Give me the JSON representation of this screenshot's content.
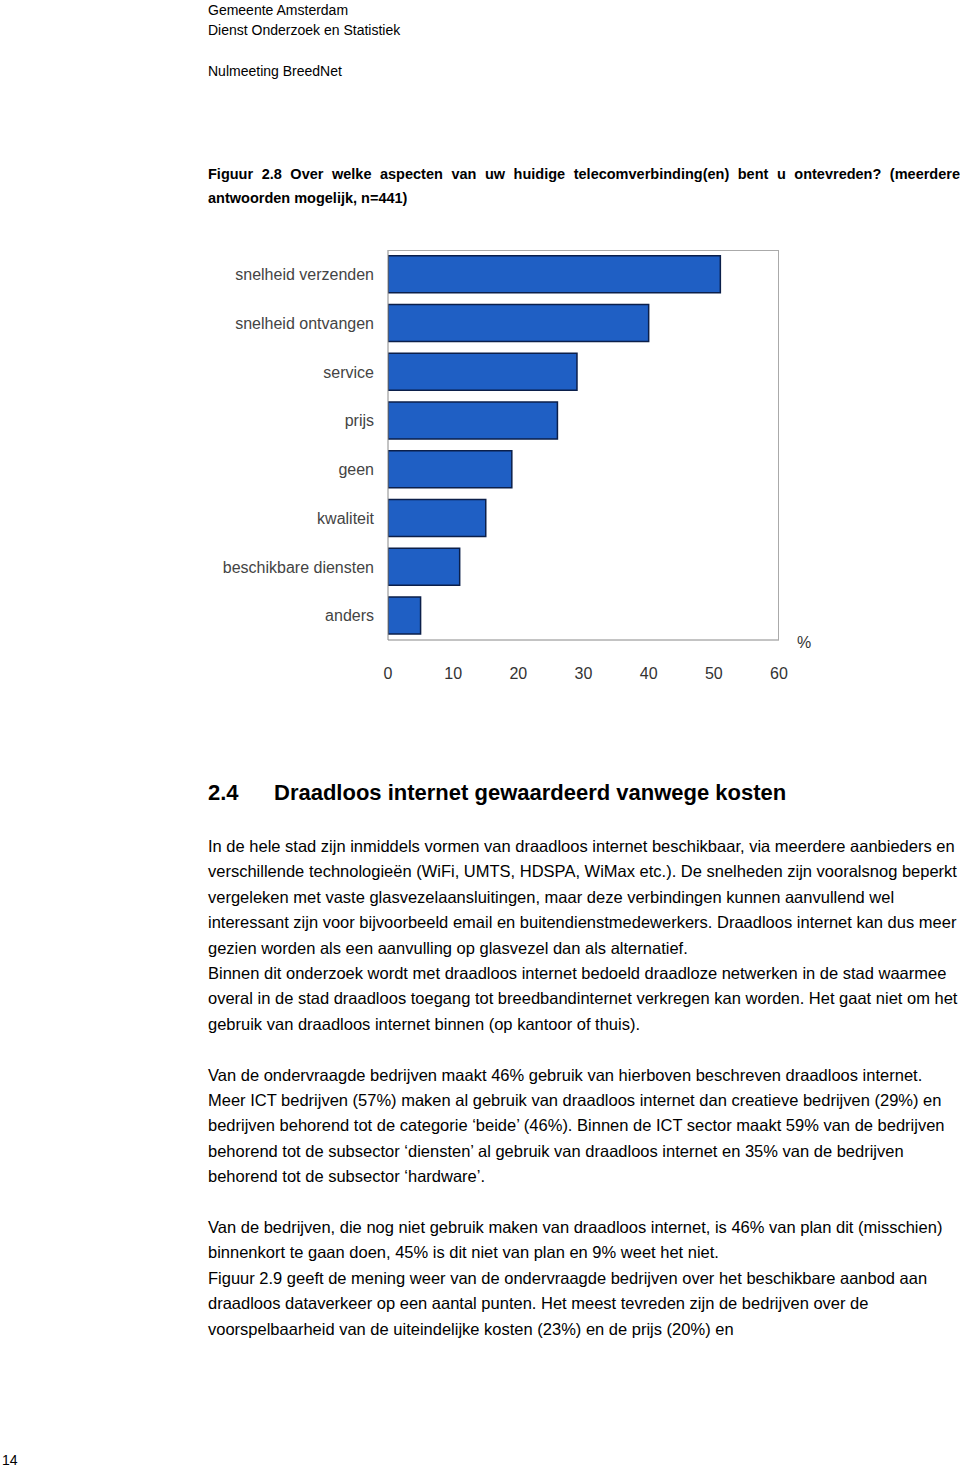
{
  "chart_data": {
    "type": "bar",
    "orientation": "horizontal",
    "title": "Figuur 2.8 Over welke aspecten van uw huidige telecomverbinding(en) bent u ontevreden? (meerdere antwoorden mogelijk, n=441)",
    "categories": [
      "snelheid verzenden",
      "snelheid ontvangen",
      "service",
      "prijs",
      "geen",
      "kwaliteit",
      "beschikbare diensten",
      "anders"
    ],
    "values": [
      51,
      40,
      29,
      26,
      19,
      15,
      11,
      5
    ],
    "color": "#1f5fc4",
    "x_label": "%",
    "xlim": [
      0,
      60
    ],
    "xticks": [
      0,
      10,
      20,
      30,
      40,
      50,
      60
    ],
    "grid": false
  },
  "document": {
    "header": [
      "Gemeente Amsterdam",
      "Dienst Onderzoek en Statistiek"
    ],
    "report": "Nulmeeting BreedNet",
    "section": {
      "number": "2.4",
      "title": "Draadloos internet gewaardeerd vanwege kosten"
    },
    "body": [
      [
        "In de hele stad zijn inmiddels vormen van draadloos internet beschikbaar, via meerdere aanbieders en verschillende technologieën (WiFi, UMTS, HDSPA, WiMax etc.). De snelheden zijn vooralsnog beperkt vergeleken met vaste glasvezelaansluitingen, maar deze verbindingen kunnen aanvullend wel interessant zijn voor bijvoorbeeld email en buitendienstmedewerkers. Draadloos internet kan dus meer gezien worden als een aanvulling op glasvezel dan als alternatief.",
        "Binnen dit onderzoek wordt met draadloos internet bedoeld draadloze netwerken in de stad waarmee overal in de stad draadloos toegang tot breedbandinternet verkregen kan worden. Het gaat niet om het gebruik van draadloos internet binnen (op kantoor of thuis)."
      ],
      [
        "Van de ondervraagde bedrijven maakt 46% gebruik van hierboven beschreven draadloos internet. Meer ICT bedrijven (57%) maken al gebruik van draadloos internet dan creatieve bedrijven (29%) en bedrijven behorend tot de categorie ‘beide’ (46%). Binnen de ICT sector maakt 59% van de bedrijven behorend tot de subsector ‘diensten’ al gebruik van draadloos internet en 35% van de bedrijven behorend tot de subsector ‘hardware’."
      ],
      [
        "Van de bedrijven, die nog niet gebruik maken van draadloos internet, is 46% van plan dit (misschien) binnenkort te gaan doen, 45% is dit niet van plan en 9% weet het niet.",
        "Figuur 2.9 geeft de mening weer van de ondervraagde bedrijven over het beschikbare aanbod aan draadloos dataverkeer op een aantal punten. Het meest tevreden zijn de bedrijven over de voorspelbaarheid van de uiteindelijke kosten (23%) en de prijs (20%) en"
      ]
    ],
    "page_number": 14
  }
}
